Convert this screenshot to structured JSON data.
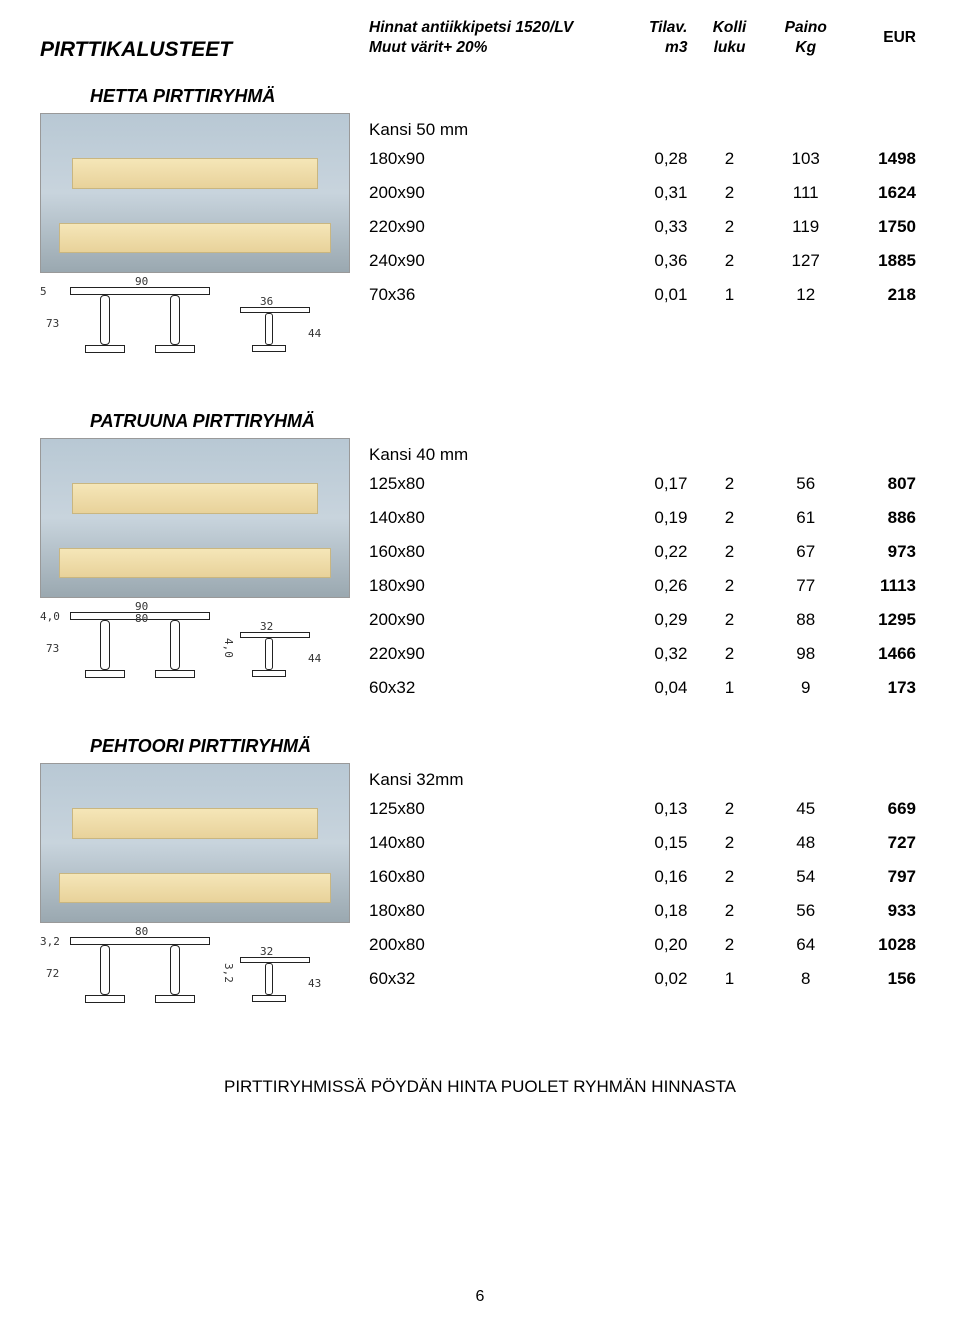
{
  "header": {
    "page_title": "PIRTTIKALUSTEET",
    "row1": {
      "spec": "Hinnat antiikkipetsi 1520/LV",
      "c1": "Tilav.",
      "c2": "Kolli",
      "c3": "Paino",
      "c4": "EUR"
    },
    "row2": {
      "spec": "Muut värit+ 20%",
      "c1": "m3",
      "c2": "luku",
      "c3": "Kg",
      "c4": ""
    }
  },
  "sections": [
    {
      "title": "HETTA PIRTTIRYHMÄ",
      "subhead": "Kansi 50 mm",
      "spec_labels": {
        "top_w": "90",
        "h": "73",
        "bench_w": "36",
        "bench_h": "44",
        "side": "5"
      },
      "rows": [
        {
          "spec": "180x90",
          "v1": "0,28",
          "v2": "2",
          "v3": "103",
          "v4": "1498"
        },
        {
          "spec": "200x90",
          "v1": "0,31",
          "v2": "2",
          "v3": "111",
          "v4": "1624"
        },
        {
          "spec": "220x90",
          "v1": "0,33",
          "v2": "2",
          "v3": "119",
          "v4": "1750"
        },
        {
          "spec": "240x90",
          "v1": "0,36",
          "v2": "2",
          "v3": "127",
          "v4": "1885"
        },
        {
          "spec": "70x36",
          "v1": "0,01",
          "v2": "1",
          "v3": "12",
          "v4": "218"
        }
      ]
    },
    {
      "title": "PATRUUNA PIRTTIRYHMÄ",
      "subhead": "Kansi 40 mm",
      "spec_labels": {
        "top_w": "90",
        "top_w2": "80",
        "h": "73",
        "bench_w": "32",
        "bench_h": "44",
        "side": "4,0",
        "side2": "4,0"
      },
      "rows": [
        {
          "spec": "125x80",
          "v1": "0,17",
          "v2": "2",
          "v3": "56",
          "v4": "807"
        },
        {
          "spec": "140x80",
          "v1": "0,19",
          "v2": "2",
          "v3": "61",
          "v4": "886"
        },
        {
          "spec": "160x80",
          "v1": "0,22",
          "v2": "2",
          "v3": "67",
          "v4": "973"
        },
        {
          "spec": "180x90",
          "v1": "0,26",
          "v2": "2",
          "v3": "77",
          "v4": "1113"
        },
        {
          "spec": "200x90",
          "v1": "0,29",
          "v2": "2",
          "v3": "88",
          "v4": "1295"
        },
        {
          "spec": "220x90",
          "v1": "0,32",
          "v2": "2",
          "v3": "98",
          "v4": "1466"
        },
        {
          "spec": "60x32",
          "v1": "0,04",
          "v2": "1",
          "v3": "9",
          "v4": "173"
        }
      ]
    },
    {
      "title": "PEHTOORI PIRTTIRYHMÄ",
      "subhead": "Kansi 32mm",
      "spec_labels": {
        "top_w": "80",
        "h": "72",
        "bench_w": "32",
        "bench_h": "43",
        "side": "3,2",
        "side2": "3,2"
      },
      "rows": [
        {
          "spec": "125x80",
          "v1": "0,13",
          "v2": "2",
          "v3": "45",
          "v4": "669"
        },
        {
          "spec": "140x80",
          "v1": "0,15",
          "v2": "2",
          "v3": "48",
          "v4": "727"
        },
        {
          "spec": "160x80",
          "v1": "0,16",
          "v2": "2",
          "v3": "54",
          "v4": "797"
        },
        {
          "spec": "180x80",
          "v1": "0,18",
          "v2": "2",
          "v3": "56",
          "v4": "933"
        },
        {
          "spec": "200x80",
          "v1": "0,20",
          "v2": "2",
          "v3": "64",
          "v4": "1028"
        },
        {
          "spec": "60x32",
          "v1": "0,02",
          "v2": "1",
          "v3": "8",
          "v4": "156"
        }
      ]
    }
  ],
  "footer_note": "PIRTTIRYHMISSÄ PÖYDÄN HINTA PUOLET RYHMÄN HINNASTA",
  "page_number": "6"
}
